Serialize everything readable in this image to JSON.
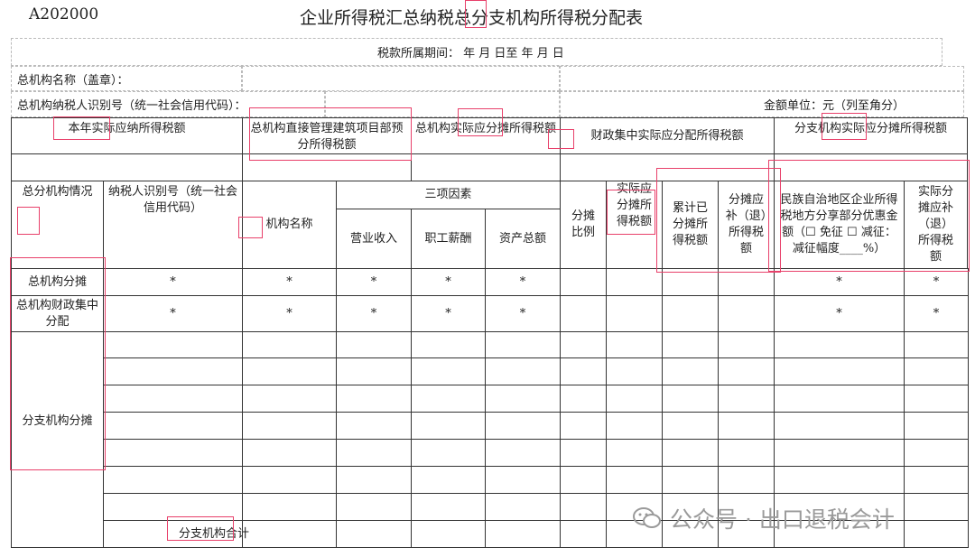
{
  "form_code": "A202000",
  "title": "企业所得税汇总纳税总分支机构所得税分配表",
  "period_label": "税款所属期间：  年  月  日至  年  月  日",
  "hq_name_label": "总机构名称（盖章）：",
  "hq_taxid_label": "总机构纳税人识别号（统一社会信用代码）：",
  "amount_unit": "金额单位：元（列至角分）",
  "header_row1": {
    "annual_tax": "本年实际应纳所得税额",
    "construction": "总机构直接管理建筑项目部预分所得税额",
    "hq_share": "总机构实际应分摊所得税额",
    "fiscal": "财政集中实际应分配所得税额",
    "branch_share": "分支机构实际应分摊所得税额"
  },
  "header_row3": {
    "situation": "总分机构情况",
    "taxid": "纳税人识别号（统一社会信用代码）",
    "org_name": "机构名称",
    "three_factors": "三项因素",
    "revenue": "营业收入",
    "salary": "职工薪酬",
    "assets": "资产总额",
    "ratio": "分摊比例",
    "actual_share": "实际应分摊所得税额",
    "cumulative": "累计已分摊所得税额",
    "supplement": "分摊应补（退）所得税额",
    "ethnic": "民族自治地区企业所得税地方分享部分优惠金额（☐ 免征 ☐ 减征：减征幅度____%）",
    "actual_supplement": "实际分摊应补（退）所得税额"
  },
  "rows": {
    "hq_share": "总机构分摊",
    "hq_fiscal": "总机构财政集中分配",
    "branch_share": "分支机构分摊",
    "branch_total": "分支机构合计",
    "star": "*"
  },
  "watermark": "公众号 · 出口退税会计",
  "colors": {
    "annotation": "#e8406a",
    "watermark": "#9a9a9a"
  }
}
